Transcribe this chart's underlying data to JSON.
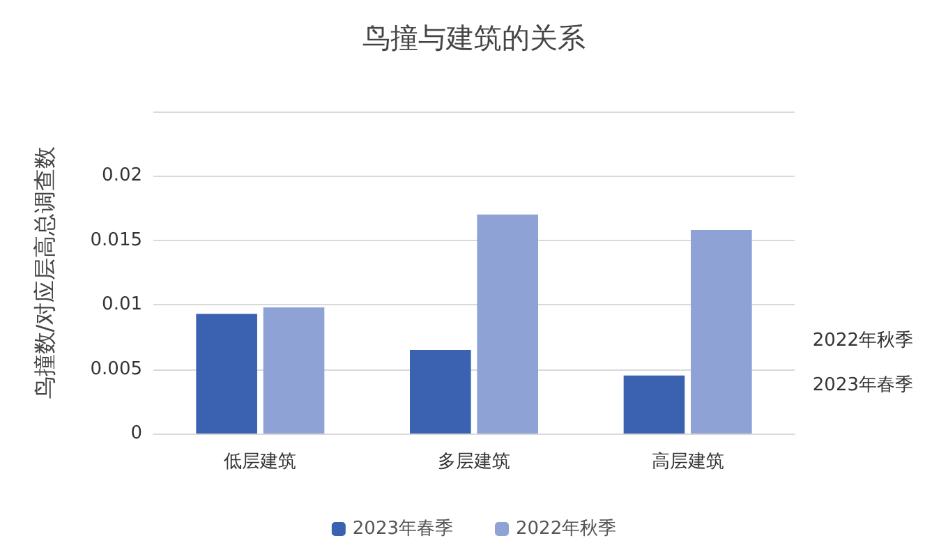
{
  "chart_data": {
    "type": "bar",
    "title": "鸟撞与建筑的关系",
    "ylabel": "鸟撞数/对应层高总调查数",
    "categories": [
      "低层建筑",
      "多层建筑",
      "高层建筑"
    ],
    "series": [
      {
        "name": "2023年春季",
        "color": "#3b62b0",
        "values": [
          0.0093,
          0.0065,
          0.0045
        ]
      },
      {
        "name": "2022年秋季",
        "color": "#8ea2d6",
        "values": [
          0.0098,
          0.017,
          0.0158
        ]
      }
    ],
    "ylim": [
      0,
      0.025
    ],
    "yticks": [
      0,
      0.005,
      0.01,
      0.015,
      0.02,
      {
        "value": 0.025,
        "label": null
      }
    ],
    "grid": "y",
    "legend": "bottom"
  }
}
